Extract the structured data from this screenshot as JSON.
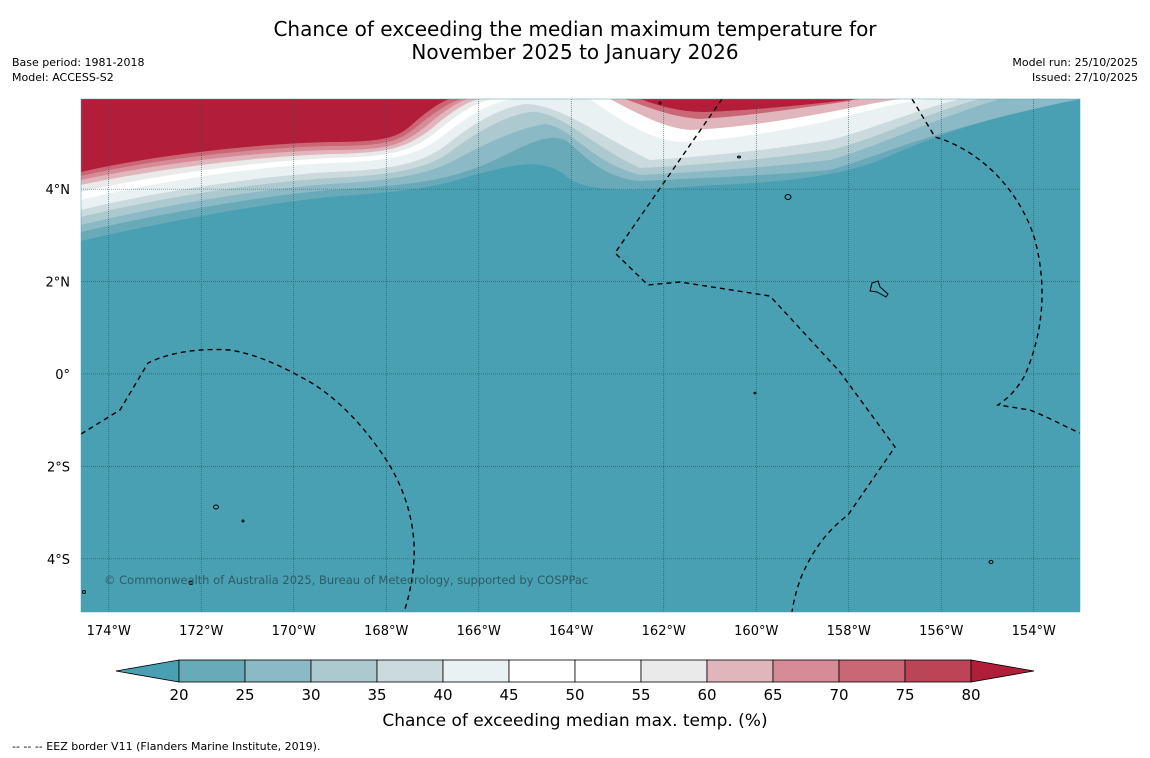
{
  "title": {
    "line1": "Chance of exceeding the median maximum temperature for",
    "line2": "November 2025 to January 2026"
  },
  "meta_left": {
    "base_period": "Base period: 1981-2018",
    "model": "Model: ACCESS-S2"
  },
  "meta_right": {
    "model_run": "Model run: 25/10/2025",
    "issued": "Issued: 27/10/2025"
  },
  "map": {
    "lon_range": [
      -174.6,
      -153.0
    ],
    "lat_range": [
      -5.15,
      5.95
    ],
    "lat_labels": [
      "4°N",
      "2°N",
      "0°",
      "2°S",
      "4°S"
    ],
    "lon_labels": [
      "174°W",
      "172°W",
      "170°W",
      "168°W",
      "166°W",
      "164°W",
      "162°W",
      "160°W",
      "158°W",
      "156°W",
      "154°W"
    ],
    "copyright": "© Commonwealth of Australia 2025, Bureau of Meteorology, supported by COSPPac",
    "colors": {
      "ocean": "#49a0b2",
      "hot": "#b21e3a"
    }
  },
  "colorbar": {
    "label": "Chance of exceeding median max. temp. (%)",
    "ticks": [
      "20",
      "25",
      "30",
      "35",
      "40",
      "45",
      "50",
      "55",
      "60",
      "65",
      "70",
      "75",
      "80"
    ],
    "colors": [
      "#49a0b2",
      "#69aab9",
      "#8bbac6",
      "#abc9cf",
      "#cbdadd",
      "#eaf1f2",
      "#ffffff",
      "#ffffff",
      "#ebeaeb",
      "#e0b6bc",
      "#d68b96",
      "#c96874",
      "#bb4556",
      "#b21e3a"
    ]
  },
  "footnote": "--  --  -- EEZ border V11 (Flanders Marine Institute, 2019)."
}
